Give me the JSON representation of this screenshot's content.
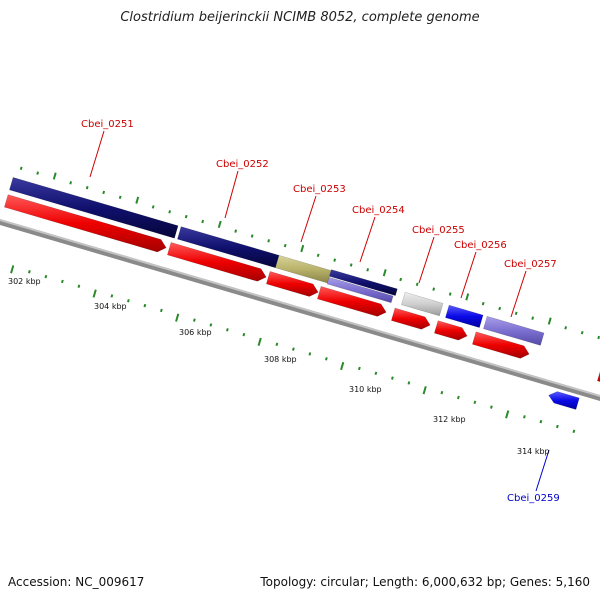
{
  "title": "Clostridium beijerinckii NCIMB 8052, complete genome",
  "footer": {
    "accession": "Accession: NC_009617",
    "summary": "Topology: circular; Length: 6,000,632 bp; Genes: 5,160"
  },
  "colors": {
    "forward_label": "#cc0000",
    "reverse_label": "#0000cc",
    "backbone": "#888888",
    "tick": "#2a8a2a",
    "cds_red": "#ee0000",
    "cds_navy": "#10106e",
    "cds_olive": "#b8b26a",
    "cds_lavender": "#7b6fd0",
    "cds_grey": "#cfcfcf",
    "cds_blue": "#0a0ae6"
  },
  "gene_labels": [
    {
      "text": "Cbei_0251",
      "color": "forward_label"
    },
    {
      "text": "Cbei_0252",
      "color": "forward_label"
    },
    {
      "text": "Cbei_0253",
      "color": "forward_label"
    },
    {
      "text": "Cbei_0254",
      "color": "forward_label"
    },
    {
      "text": "Cbei_0255",
      "color": "forward_label"
    },
    {
      "text": "Cbei_0256",
      "color": "forward_label"
    },
    {
      "text": "Cbei_0257",
      "color": "forward_label"
    },
    {
      "text": "Cbei_0259",
      "color": "reverse_label"
    }
  ],
  "scale_labels": [
    "302 kbp",
    "304 kbp",
    "306 kbp",
    "308 kbp",
    "310 kbp",
    "312 kbp",
    "314 kbp"
  ]
}
